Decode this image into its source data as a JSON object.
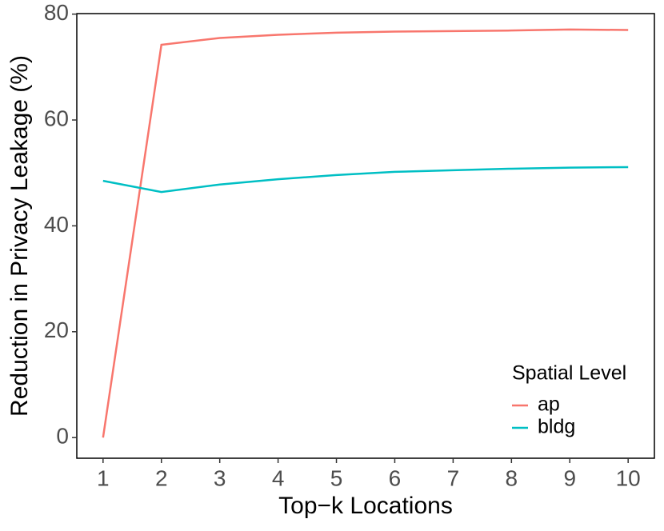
{
  "chart_data": {
    "type": "line",
    "x_label": "Top−k Locations",
    "y_label": "Reduction in Privacy Leakage (%)",
    "x": [
      1,
      2,
      3,
      4,
      5,
      6,
      7,
      8,
      9,
      10
    ],
    "series": [
      {
        "name": "ap",
        "color": "#F8766D",
        "values": [
          0,
          74.2,
          75.5,
          76.1,
          76.5,
          76.7,
          76.8,
          76.9,
          77.1,
          77.0
        ]
      },
      {
        "name": "bldg",
        "color": "#00BFC4",
        "values": [
          48.5,
          46.4,
          47.8,
          48.8,
          49.6,
          50.2,
          50.5,
          50.8,
          51.0,
          51.1
        ]
      }
    ],
    "xlim": [
      0.55,
      10.45
    ],
    "xticks": [
      1,
      2,
      3,
      4,
      5,
      6,
      7,
      8,
      9,
      10
    ],
    "ylim": [
      -3.9,
      80.1
    ],
    "yticks": [
      0,
      20,
      40,
      60,
      80
    ],
    "legend_title": "Spatial Level",
    "legend_position": "bottom-right",
    "grid": false
  }
}
